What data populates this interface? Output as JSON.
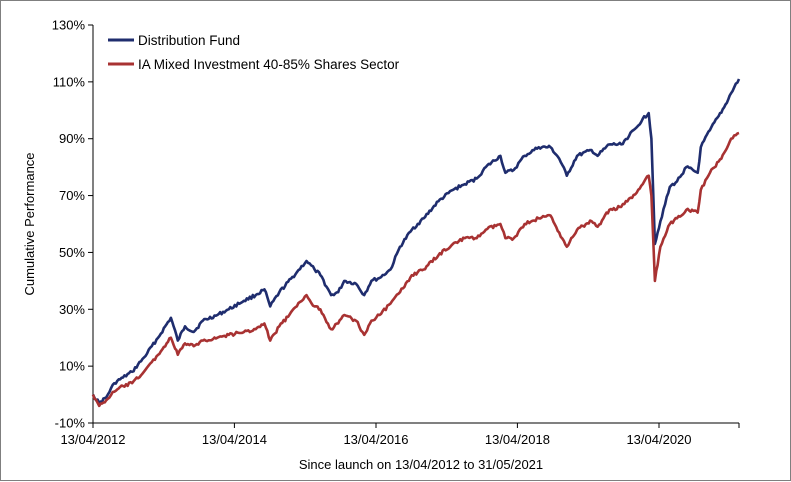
{
  "chart_data": {
    "type": "line",
    "title": "",
    "xlabel": "Since launch on 13/04/2012 to 31/05/2021",
    "ylabel": "Cumulative Performance",
    "x_start": "13/04/2012",
    "x_end": "31/05/2021",
    "x_tick_labels": [
      "13/04/2012",
      "13/04/2014",
      "13/04/2016",
      "13/04/2018",
      "13/04/2020"
    ],
    "x_tick_dates": [
      "2012-04-13",
      "2014-04-13",
      "2016-04-13",
      "2018-04-13",
      "2020-04-13"
    ],
    "ylim": [
      -10,
      130
    ],
    "y_ticks": [
      -10,
      10,
      30,
      50,
      70,
      90,
      110,
      130
    ],
    "y_tick_labels": [
      "-10%",
      "10%",
      "30%",
      "50%",
      "70%",
      "90%",
      "110%",
      "130%"
    ],
    "grid": false,
    "legend_position": "top-left",
    "series": [
      {
        "name": "Distribution Fund",
        "color": "#1f2d6e",
        "points": [
          [
            "2012-04-13",
            0
          ],
          [
            "2012-05-15",
            -3
          ],
          [
            "2012-06-20",
            -1
          ],
          [
            "2012-08-01",
            4
          ],
          [
            "2012-09-15",
            6
          ],
          [
            "2012-11-01",
            8
          ],
          [
            "2013-01-01",
            13
          ],
          [
            "2013-03-15",
            20
          ],
          [
            "2013-05-20",
            27
          ],
          [
            "2013-06-25",
            19
          ],
          [
            "2013-08-01",
            24
          ],
          [
            "2013-09-15",
            22
          ],
          [
            "2013-11-01",
            26
          ],
          [
            "2014-01-15",
            28
          ],
          [
            "2014-03-15",
            30
          ],
          [
            "2014-06-01",
            33
          ],
          [
            "2014-08-01",
            35
          ],
          [
            "2014-09-15",
            37
          ],
          [
            "2014-10-15",
            31
          ],
          [
            "2014-12-01",
            36
          ],
          [
            "2015-03-01",
            43
          ],
          [
            "2015-04-20",
            47
          ],
          [
            "2015-06-01",
            44
          ],
          [
            "2015-07-01",
            42
          ],
          [
            "2015-08-25",
            35
          ],
          [
            "2015-10-01",
            36
          ],
          [
            "2015-11-01",
            40
          ],
          [
            "2016-01-01",
            39
          ],
          [
            "2016-02-12",
            35
          ],
          [
            "2016-03-20",
            40
          ],
          [
            "2016-05-01",
            41
          ],
          [
            "2016-06-27",
            44
          ],
          [
            "2016-08-15",
            52
          ],
          [
            "2016-10-15",
            58
          ],
          [
            "2016-12-15",
            62
          ],
          [
            "2017-03-01",
            68
          ],
          [
            "2017-05-15",
            72
          ],
          [
            "2017-07-15",
            74
          ],
          [
            "2017-09-15",
            76
          ],
          [
            "2017-11-01",
            80
          ],
          [
            "2018-01-15",
            84
          ],
          [
            "2018-02-10",
            78
          ],
          [
            "2018-03-25",
            79
          ],
          [
            "2018-05-20",
            84
          ],
          [
            "2018-08-01",
            87
          ],
          [
            "2018-10-01",
            87
          ],
          [
            "2018-11-15",
            83
          ],
          [
            "2018-12-24",
            77
          ],
          [
            "2019-02-15",
            84
          ],
          [
            "2019-05-01",
            86
          ],
          [
            "2019-06-01",
            84
          ],
          [
            "2019-08-01",
            88
          ],
          [
            "2019-10-01",
            88
          ],
          [
            "2019-12-20",
            94
          ],
          [
            "2020-01-20",
            97
          ],
          [
            "2020-02-20",
            99
          ],
          [
            "2020-03-05",
            90
          ],
          [
            "2020-03-23",
            53
          ],
          [
            "2020-04-20",
            61
          ],
          [
            "2020-06-08",
            73
          ],
          [
            "2020-07-15",
            75
          ],
          [
            "2020-09-01",
            80
          ],
          [
            "2020-10-30",
            78
          ],
          [
            "2020-11-15",
            87
          ],
          [
            "2021-01-01",
            93
          ],
          [
            "2021-02-15",
            98
          ],
          [
            "2021-03-15",
            101
          ],
          [
            "2021-04-20",
            106
          ],
          [
            "2021-05-31",
            111
          ]
        ]
      },
      {
        "name": "IA Mixed Investment 40-85% Shares Sector",
        "color": "#a83232",
        "points": [
          [
            "2012-04-13",
            0
          ],
          [
            "2012-05-15",
            -4
          ],
          [
            "2012-06-20",
            -2
          ],
          [
            "2012-08-01",
            1
          ],
          [
            "2012-09-15",
            3
          ],
          [
            "2012-11-01",
            4
          ],
          [
            "2013-01-01",
            8
          ],
          [
            "2013-03-15",
            14
          ],
          [
            "2013-05-20",
            20
          ],
          [
            "2013-06-25",
            14
          ],
          [
            "2013-08-01",
            18
          ],
          [
            "2013-09-15",
            17
          ],
          [
            "2013-11-01",
            19
          ],
          [
            "2014-01-15",
            20
          ],
          [
            "2014-03-15",
            21
          ],
          [
            "2014-06-01",
            22
          ],
          [
            "2014-08-01",
            23
          ],
          [
            "2014-09-15",
            25
          ],
          [
            "2014-10-15",
            19
          ],
          [
            "2014-12-01",
            24
          ],
          [
            "2015-03-01",
            31
          ],
          [
            "2015-04-20",
            35
          ],
          [
            "2015-06-01",
            31
          ],
          [
            "2015-07-01",
            30
          ],
          [
            "2015-08-25",
            23
          ],
          [
            "2015-10-01",
            25
          ],
          [
            "2015-11-01",
            28
          ],
          [
            "2016-01-01",
            26
          ],
          [
            "2016-02-12",
            21
          ],
          [
            "2016-03-20",
            26
          ],
          [
            "2016-05-01",
            28
          ],
          [
            "2016-06-27",
            32
          ],
          [
            "2016-08-15",
            36
          ],
          [
            "2016-10-15",
            42
          ],
          [
            "2016-12-15",
            44
          ],
          [
            "2017-03-01",
            49
          ],
          [
            "2017-05-15",
            53
          ],
          [
            "2017-07-15",
            55
          ],
          [
            "2017-09-15",
            55
          ],
          [
            "2017-11-01",
            58
          ],
          [
            "2018-01-15",
            60
          ],
          [
            "2018-02-10",
            55
          ],
          [
            "2018-03-25",
            55
          ],
          [
            "2018-05-20",
            60
          ],
          [
            "2018-08-01",
            62
          ],
          [
            "2018-10-01",
            63
          ],
          [
            "2018-11-15",
            57
          ],
          [
            "2018-12-24",
            52
          ],
          [
            "2019-02-15",
            58
          ],
          [
            "2019-05-01",
            61
          ],
          [
            "2019-06-01",
            59
          ],
          [
            "2019-08-01",
            65
          ],
          [
            "2019-10-01",
            66
          ],
          [
            "2019-12-20",
            71
          ],
          [
            "2020-01-20",
            74
          ],
          [
            "2020-02-20",
            77
          ],
          [
            "2020-03-05",
            70
          ],
          [
            "2020-03-23",
            40
          ],
          [
            "2020-04-20",
            52
          ],
          [
            "2020-06-08",
            60
          ],
          [
            "2020-07-15",
            62
          ],
          [
            "2020-09-01",
            65
          ],
          [
            "2020-10-30",
            64
          ],
          [
            "2020-11-15",
            72
          ],
          [
            "2021-01-01",
            78
          ],
          [
            "2021-02-15",
            82
          ],
          [
            "2021-03-15",
            85
          ],
          [
            "2021-04-20",
            90
          ],
          [
            "2021-05-31",
            92
          ]
        ]
      }
    ]
  }
}
